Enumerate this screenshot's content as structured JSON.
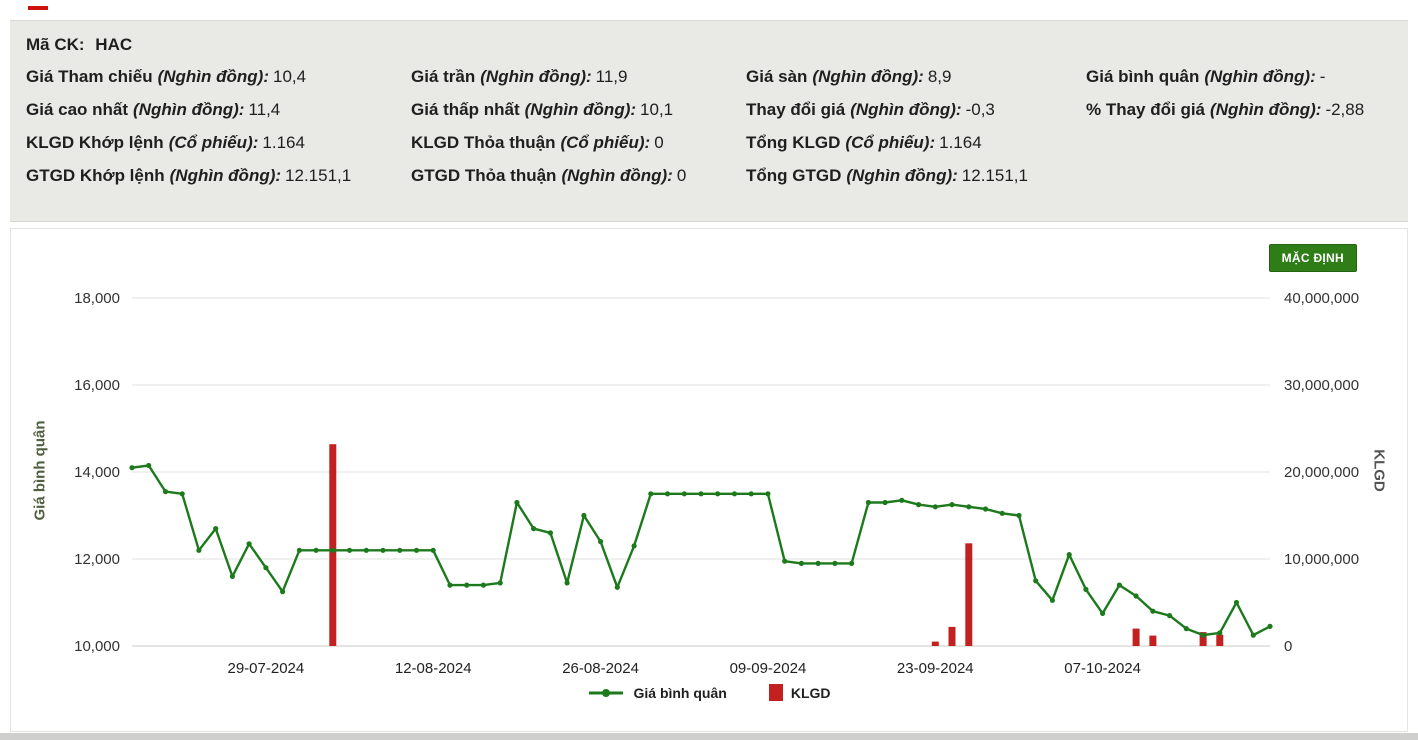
{
  "info_panel": {
    "ticker_label": "Mã CK:",
    "ticker_value": "HAC",
    "rows": [
      [
        {
          "label": "Giá Tham chiếu",
          "unit": "(Nghìn đồng):",
          "value": "10,4"
        },
        {
          "label": "Giá trần",
          "unit": "(Nghìn đồng):",
          "value": "11,9"
        },
        {
          "label": "Giá sàn",
          "unit": "(Nghìn đồng):",
          "value": "8,9"
        },
        {
          "label": "Giá bình quân",
          "unit": "(Nghìn đồng):",
          "value": "-"
        }
      ],
      [
        {
          "label": "Giá cao nhất",
          "unit": "(Nghìn đồng):",
          "value": "11,4"
        },
        {
          "label": "Giá thấp nhất",
          "unit": "(Nghìn đồng):",
          "value": "10,1"
        },
        {
          "label": "Thay đổi giá",
          "unit": "(Nghìn đồng):",
          "value": "-0,3"
        },
        {
          "label": "% Thay đổi giá",
          "unit": "(Nghìn đồng):",
          "value": "-2,88"
        }
      ],
      [
        {
          "label": "KLGD Khớp lệnh",
          "unit": "(Cổ phiếu):",
          "value": "1.164"
        },
        {
          "label": "KLGD Thỏa thuận",
          "unit": "(Cổ phiếu):",
          "value": "0"
        },
        {
          "label": "Tổng KLGD",
          "unit": "(Cổ phiếu):",
          "value": "1.164"
        },
        null
      ],
      [
        {
          "label": "GTGD Khớp lệnh",
          "unit": "(Nghìn đồng):",
          "value": "12.151,1"
        },
        {
          "label": "GTGD Thỏa thuận",
          "unit": "(Nghìn đồng):",
          "value": "0"
        },
        {
          "label": "Tổng GTGD",
          "unit": "(Nghìn đồng):",
          "value": "12.151,1"
        },
        null
      ]
    ]
  },
  "chart_panel": {
    "default_button_label": "MẶC ĐỊNH",
    "button_color": "#2e7d17",
    "left_axis_title": "Giá bình quân",
    "right_axis_title": "KLGD"
  },
  "legend": {
    "line_label": "Giá bình quân",
    "bar_label": "KLGD"
  },
  "chart_data": {
    "type": "combo",
    "title": "",
    "x_tick_labels": [
      {
        "index": 8,
        "label": "29-07-2024"
      },
      {
        "index": 18,
        "label": "12-08-2024"
      },
      {
        "index": 28,
        "label": "26-08-2024"
      },
      {
        "index": 38,
        "label": "09-09-2024"
      },
      {
        "index": 48,
        "label": "23-09-2024"
      },
      {
        "index": 58,
        "label": "07-10-2024"
      }
    ],
    "left_axis": {
      "label": "Giá bình quân",
      "min": 10000,
      "max": 18000,
      "tick_labels": [
        "10,000",
        "12,000",
        "14,000",
        "16,000",
        "18,000"
      ]
    },
    "right_axis": {
      "label": "KLGD",
      "min": 0,
      "max": 40000000,
      "tick_labels": [
        "0",
        "10,000,000",
        "20,000,000",
        "30,000,000",
        "40,000,000"
      ]
    },
    "grid": true,
    "legend_position": "bottom",
    "series": [
      {
        "name": "Giá bình quân",
        "type": "line",
        "color": "#1c7a1c",
        "values": [
          14100,
          14150,
          13550,
          13500,
          12200,
          12700,
          11600,
          12350,
          11800,
          11250,
          12200,
          12200,
          12200,
          12200,
          12200,
          12200,
          12200,
          12200,
          12200,
          11400,
          11400,
          11400,
          11450,
          13300,
          12700,
          12600,
          11450,
          13000,
          12400,
          11350,
          12300,
          13500,
          13500,
          13500,
          13500,
          13500,
          13500,
          13500,
          13500,
          11950,
          11900,
          11900,
          11900,
          11900,
          13300,
          13300,
          13350,
          13250,
          13200,
          13250,
          13200,
          13150,
          13050,
          13000,
          11500,
          11050,
          12100,
          11300,
          10750,
          11400,
          11150,
          10800,
          10700,
          10400,
          10250,
          10300,
          11000,
          10250,
          10450
        ]
      },
      {
        "name": "KLGD",
        "type": "bar",
        "color": "#c32020",
        "values": [
          0,
          0,
          0,
          0,
          0,
          0,
          0,
          0,
          0,
          0,
          0,
          0,
          23200000,
          0,
          0,
          0,
          0,
          0,
          0,
          0,
          0,
          0,
          0,
          0,
          0,
          0,
          0,
          0,
          0,
          0,
          0,
          0,
          0,
          0,
          0,
          0,
          0,
          0,
          0,
          0,
          0,
          0,
          0,
          0,
          0,
          0,
          0,
          0,
          500000,
          2200000,
          11800000,
          0,
          0,
          0,
          0,
          0,
          0,
          0,
          0,
          0,
          2000000,
          1200000,
          0,
          0,
          1600000,
          1300000,
          0,
          0,
          0
        ]
      }
    ]
  }
}
